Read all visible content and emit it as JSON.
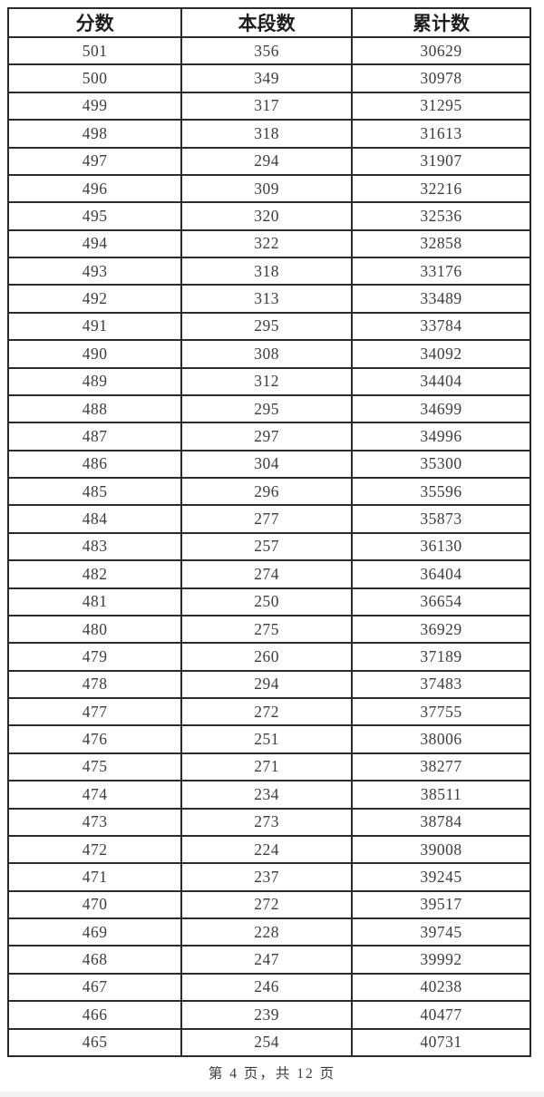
{
  "table": {
    "columns": [
      "分数",
      "本段数",
      "累计数"
    ],
    "rows": [
      [
        501,
        356,
        30629
      ],
      [
        500,
        349,
        30978
      ],
      [
        499,
        317,
        31295
      ],
      [
        498,
        318,
        31613
      ],
      [
        497,
        294,
        31907
      ],
      [
        496,
        309,
        32216
      ],
      [
        495,
        320,
        32536
      ],
      [
        494,
        322,
        32858
      ],
      [
        493,
        318,
        33176
      ],
      [
        492,
        313,
        33489
      ],
      [
        491,
        295,
        33784
      ],
      [
        490,
        308,
        34092
      ],
      [
        489,
        312,
        34404
      ],
      [
        488,
        295,
        34699
      ],
      [
        487,
        297,
        34996
      ],
      [
        486,
        304,
        35300
      ],
      [
        485,
        296,
        35596
      ],
      [
        484,
        277,
        35873
      ],
      [
        483,
        257,
        36130
      ],
      [
        482,
        274,
        36404
      ],
      [
        481,
        250,
        36654
      ],
      [
        480,
        275,
        36929
      ],
      [
        479,
        260,
        37189
      ],
      [
        478,
        294,
        37483
      ],
      [
        477,
        272,
        37755
      ],
      [
        476,
        251,
        38006
      ],
      [
        475,
        271,
        38277
      ],
      [
        474,
        234,
        38511
      ],
      [
        473,
        273,
        38784
      ],
      [
        472,
        224,
        39008
      ],
      [
        471,
        237,
        39245
      ],
      [
        470,
        272,
        39517
      ],
      [
        469,
        228,
        39745
      ],
      [
        468,
        247,
        39992
      ],
      [
        467,
        246,
        40238
      ],
      [
        466,
        239,
        40477
      ],
      [
        465,
        254,
        40731
      ]
    ]
  },
  "footer": {
    "page_label": "第 4 页，共 12 页"
  },
  "colors": {
    "border": "#2b2b2b",
    "text": "#3c3c3c",
    "header_text": "#1d1d1d",
    "background": "#ffffff"
  }
}
